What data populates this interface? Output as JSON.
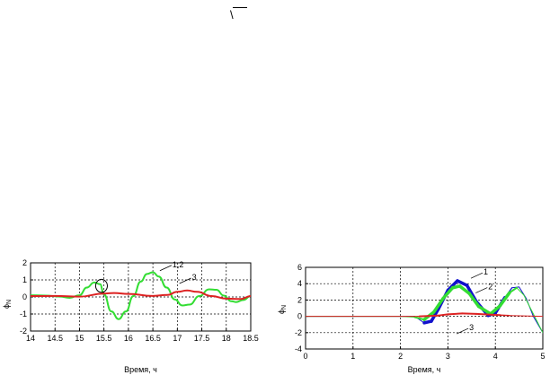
{
  "top_marks": {
    "overline": "",
    "backslash": "\\"
  },
  "chart_data": [
    {
      "type": "line",
      "xlim": [
        14,
        18.5
      ],
      "ylim": [
        -2,
        2
      ],
      "xticks": [
        14,
        14.5,
        15,
        15.5,
        16,
        16.5,
        17,
        17.5,
        18,
        18.5
      ],
      "yticks": [
        -2,
        -1,
        0,
        1,
        2
      ],
      "xtick_labels": [
        "14",
        "14.5",
        "15",
        "15.5",
        "16",
        "16.5",
        "17",
        "17.5",
        "18",
        "18.5"
      ],
      "ytick_labels": [
        "-2",
        "-1",
        "0",
        "1",
        "2"
      ],
      "xlabel": "Время, ч",
      "ylabel_main": "ϕ",
      "ylabel_sub": "N",
      "grid": true,
      "series": [
        {
          "color": "#33dd33",
          "x": [
            14.0,
            14.3,
            14.6,
            14.8,
            15.0,
            15.15,
            15.3,
            15.42,
            15.5,
            15.65,
            15.8,
            15.95,
            16.1,
            16.25,
            16.38,
            16.5,
            16.62,
            16.78,
            16.95,
            17.1,
            17.25,
            17.45,
            17.65,
            17.8,
            17.95,
            18.1,
            18.2,
            18.35,
            18.5
          ],
          "y": [
            0.1,
            0.08,
            0.02,
            -0.05,
            0.1,
            0.55,
            0.85,
            0.75,
            0.15,
            -0.85,
            -1.3,
            -0.85,
            0.05,
            0.9,
            1.35,
            1.45,
            1.2,
            0.55,
            -0.15,
            -0.5,
            -0.45,
            0.05,
            0.45,
            0.42,
            0.08,
            -0.25,
            -0.3,
            -0.18,
            0.05
          ]
        },
        {
          "color": "#dd2222",
          "x": [
            14.0,
            14.5,
            15.0,
            15.5,
            15.7,
            16.0,
            16.5,
            16.8,
            17.0,
            17.2,
            17.4,
            17.7,
            18.0,
            18.3,
            18.5
          ],
          "y": [
            0.05,
            0.06,
            0.02,
            0.2,
            0.23,
            0.18,
            0.06,
            0.12,
            0.3,
            0.38,
            0.3,
            0.05,
            -0.1,
            -0.12,
            0.05
          ]
        }
      ],
      "annotations": [
        {
          "text": "1,2",
          "x": 16.9,
          "y": 1.75
        },
        {
          "text": "3",
          "x": 17.3,
          "y": 1.0
        }
      ],
      "circle_marker": {
        "x": 15.45,
        "y": 0.65,
        "rx": 0.12,
        "ry": 0.38
      }
    },
    {
      "type": "line",
      "xlim": [
        0,
        5
      ],
      "ylim": [
        -4,
        6
      ],
      "xticks": [
        0,
        1,
        2,
        3,
        4,
        5
      ],
      "yticks": [
        -4,
        -2,
        0,
        2,
        4,
        6
      ],
      "xtick_labels": [
        "0",
        "1",
        "2",
        "3",
        "4",
        "5"
      ],
      "ytick_labels": [
        "-4",
        "-2",
        "0",
        "2",
        "4",
        "6"
      ],
      "xlabel": "Время, ч",
      "ylabel_main": "ϕ",
      "ylabel_sub": "N",
      "grid": true,
      "series": [
        {
          "color": "#1111cc",
          "x": [
            0,
            1.0,
            2.0,
            2.3,
            2.5,
            2.65,
            2.8,
            3.0,
            3.2,
            3.4,
            3.6,
            3.85,
            4.0,
            4.2,
            4.35,
            4.5,
            4.65,
            4.8,
            5.0
          ],
          "y": [
            0,
            0,
            0,
            0.0,
            -0.8,
            -0.6,
            0.9,
            3.2,
            4.35,
            3.8,
            1.8,
            0.1,
            0.4,
            2.3,
            3.5,
            3.6,
            2.2,
            0.0,
            -2.0
          ],
          "widths": [
            1,
            1,
            1,
            1,
            3.5,
            3.5,
            3.5,
            3.5,
            3.5,
            3.5,
            3.5,
            3.5,
            3.5,
            1.2,
            1,
            1,
            1,
            1
          ]
        },
        {
          "color": "#33dd33",
          "x": [
            0,
            1.0,
            2.0,
            2.3,
            2.5,
            2.7,
            2.9,
            3.1,
            3.25,
            3.45,
            3.65,
            3.9,
            4.1,
            4.3,
            4.45,
            4.6,
            4.8,
            5.0
          ],
          "y": [
            0,
            0,
            0,
            -0.1,
            -0.4,
            0.5,
            2.2,
            3.5,
            3.7,
            2.8,
            1.2,
            0.3,
            1.3,
            2.9,
            3.5,
            2.6,
            0.3,
            -2.0
          ],
          "widths": [
            1,
            1,
            1,
            2,
            3.5,
            3.5,
            3.5,
            3.5,
            3.5,
            3.5,
            3.5,
            3.5,
            3.5,
            2,
            1,
            1,
            1
          ]
        },
        {
          "color": "#dd2222",
          "x": [
            0,
            1.0,
            2.0,
            2.4,
            2.8,
            3.0,
            3.3,
            3.6,
            3.9,
            4.1,
            4.3,
            4.6,
            5.0
          ],
          "y": [
            0,
            0,
            0,
            0.0,
            0.1,
            0.25,
            0.35,
            0.3,
            0.2,
            0.15,
            0.1,
            0.05,
            0.0
          ],
          "widths": [
            1,
            1,
            1,
            2,
            2,
            2,
            2,
            2,
            2,
            1.5,
            1,
            1
          ]
        }
      ],
      "annotations": [
        {
          "text": "1",
          "x": 3.75,
          "y": 5.1
        },
        {
          "text": "2",
          "x": 3.85,
          "y": 3.3
        },
        {
          "text": "3",
          "x": 3.45,
          "y": -1.7
        }
      ]
    }
  ]
}
